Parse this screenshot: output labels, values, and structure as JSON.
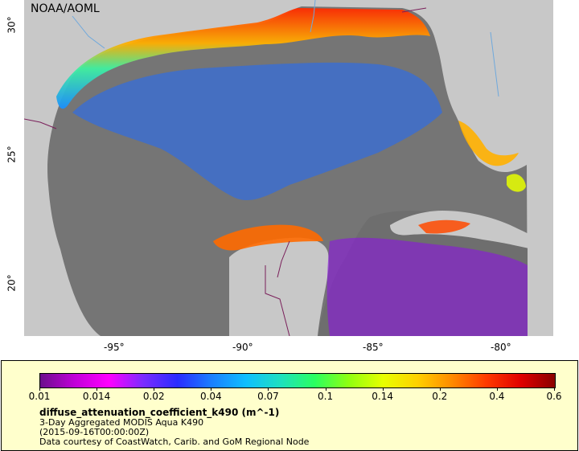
{
  "map": {
    "credit": "NOAA/AOML",
    "lat_ticks": [
      "30°",
      "25°",
      "20°"
    ],
    "lon_ticks": [
      "-95°",
      "-90°",
      "-85°",
      "-80°"
    ],
    "region": "Gulf of Mexico",
    "land_color": "#c8c8c8",
    "nodata_color": "#757575",
    "border_color": "#7a1f5a",
    "river_color": "#6fa8dc"
  },
  "legend": {
    "tick_labels": [
      "0.01",
      "0.014",
      "0.02",
      "0.04",
      "0.07",
      "0.1",
      "0.14",
      "0.2",
      "0.4",
      "0.6"
    ],
    "variable": "diffuse_attenuation_coefficient_k490 (m^-1)",
    "line1": "3-Day Aggregated MODIS Aqua K490",
    "line2": "(2015-09-16T00:00:00Z)",
    "line3": "Data courtesy of CoastWatch, Carib. and GoM Regional Node",
    "colormap": [
      "#6b0f8c",
      "#c000d8",
      "#ff00ff",
      "#7a2cff",
      "#2a2cff",
      "#1a7fff",
      "#0fbfff",
      "#1ee0c0",
      "#2aff60",
      "#90ff10",
      "#e8ff00",
      "#ffd000",
      "#ff8a00",
      "#ff3a00",
      "#e00000",
      "#8a0000"
    ]
  }
}
